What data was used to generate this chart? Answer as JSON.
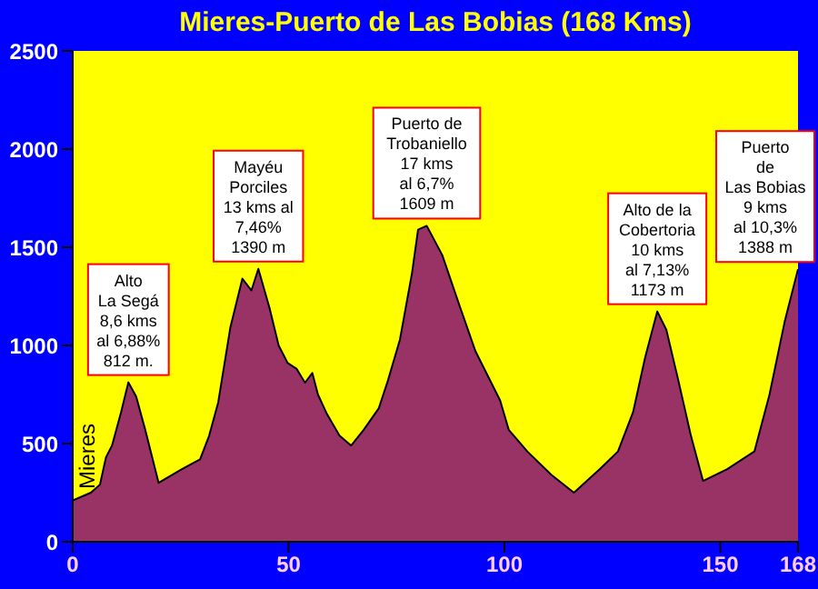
{
  "chart_data": {
    "type": "area",
    "title": "Mieres-Puerto de Las Bobias (168 Kms)",
    "x": [
      0,
      4.2,
      6.3,
      7.7,
      9.1,
      11.2,
      12.9,
      14.7,
      16.8,
      19.9,
      25.3,
      29.5,
      31.6,
      33.7,
      36.5,
      39.3,
      41.4,
      43,
      45.6,
      47.7,
      49.8,
      51.9,
      53.8,
      55.5,
      56.8,
      58.9,
      61.8,
      64.5,
      67.4,
      70.9,
      73,
      75.8,
      78.6,
      80,
      82,
      85.6,
      89.8,
      93.3,
      99,
      101,
      105.3,
      110.9,
      116.1,
      122.1,
      126.3,
      129.8,
      132.6,
      135.4,
      137.5,
      140.3,
      143.2,
      146,
      151.6,
      157.9,
      161.4,
      164.9,
      168
    ],
    "series": [
      {
        "color": "#993366",
        "values": [
          210,
          250,
          290,
          430,
          490,
          660,
          812,
          740,
          570,
          300,
          370,
          420,
          540,
          710,
          1090,
          1340,
          1280,
          1390,
          1190,
          1000,
          910,
          880,
          810,
          860,
          750,
          650,
          540,
          490,
          570,
          680,
          820,
          1030,
          1370,
          1590,
          1609,
          1460,
          1190,
          970,
          720,
          570,
          460,
          340,
          250,
          370,
          460,
          660,
          940,
          1173,
          1080,
          820,
          540,
          310,
          370,
          460,
          750,
          1120,
          1388
        ]
      }
    ],
    "xlim": [
      0,
      168
    ],
    "xticks": [
      0,
      50,
      100,
      150,
      168
    ],
    "ylim": [
      0,
      2500
    ],
    "yticks": [
      0,
      500,
      1000,
      1500,
      2000,
      2500
    ],
    "grid": false,
    "legend": false,
    "annotations": [
      {
        "text": "Mieres",
        "x": 0,
        "y": 213
      },
      {
        "text": "Alto\nLa Segá\n8,6 kms\nal 6,88%\n812 m.",
        "x": 12.9,
        "y": 812
      },
      {
        "text": "Mayéu\nPorciles\n13 kms al\n7,46%\n1390 m",
        "x": 43,
        "y": 1390
      },
      {
        "text": "Puerto de\nTrobaniello\n17 kms\nal 6,7%\n1609 m",
        "x": 82,
        "y": 1609
      },
      {
        "text": "Alto de la\nCobertoria\n10 kms\nal 7,13%\n1173 m",
        "x": 135.4,
        "y": 1173
      },
      {
        "text": "Puerto\nde\nLas Bobias\n9 kms\nal 10,3%\n1388 m",
        "x": 168,
        "y": 1388
      }
    ]
  }
}
